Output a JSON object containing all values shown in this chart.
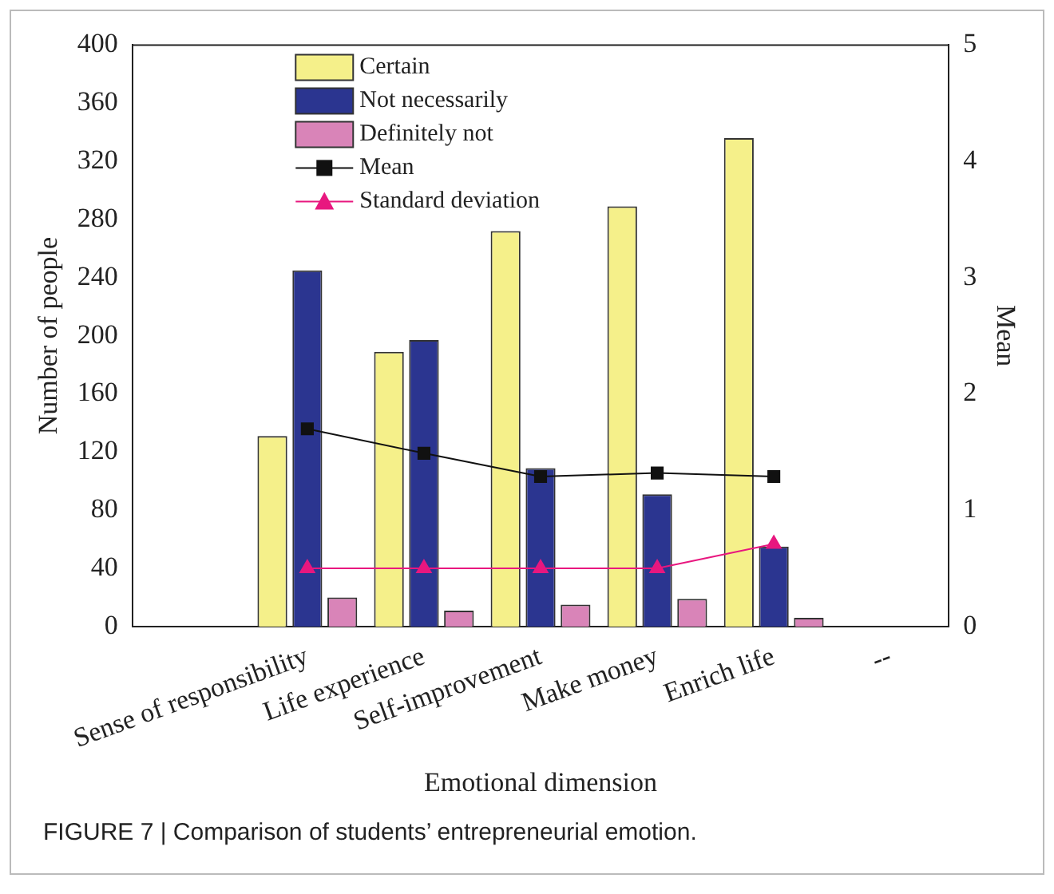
{
  "chart_data": {
    "type": "bar",
    "xlabel": "Emotional dimension",
    "ylabel": "Number of people",
    "y2label": "Mean",
    "categories": [
      null,
      "Sense of responsibility",
      "Life experience",
      "Self-improvement",
      "Make money",
      "Enrich life",
      "--"
    ],
    "series": [
      {
        "name": "Certain",
        "color": "#f5f08a",
        "values": [
          null,
          131,
          189,
          272,
          289,
          336,
          null
        ]
      },
      {
        "name": "Not necessarily",
        "color": "#2b3590",
        "values": [
          null,
          245,
          197,
          109,
          91,
          55,
          null
        ]
      },
      {
        "name": "Definitely not",
        "color": "#d984b8",
        "values": [
          null,
          20,
          11,
          15,
          19,
          6,
          null
        ]
      },
      {
        "name": "Mean",
        "type": "line",
        "axis": "y2",
        "color": "#111111",
        "marker": "square",
        "values": [
          null,
          1.7,
          1.49,
          1.29,
          1.32,
          1.29,
          null
        ]
      },
      {
        "name": "Standard deviation",
        "type": "line",
        "axis": "y2",
        "color": "#e8177f",
        "marker": "triangle",
        "values": [
          null,
          0.5,
          0.5,
          0.5,
          0.5,
          0.71,
          null
        ]
      }
    ],
    "ylim": [
      0,
      400
    ],
    "yticks": [
      0,
      40,
      80,
      120,
      160,
      200,
      240,
      280,
      320,
      360,
      400
    ],
    "y2lim": [
      0,
      5
    ],
    "y2ticks": [
      0,
      1,
      2,
      3,
      4,
      5
    ],
    "grid": false,
    "legend": "top left",
    "annotations": [
      "FIGURE 7 | Comparison of students’ entrepreneurial emotion."
    ]
  }
}
